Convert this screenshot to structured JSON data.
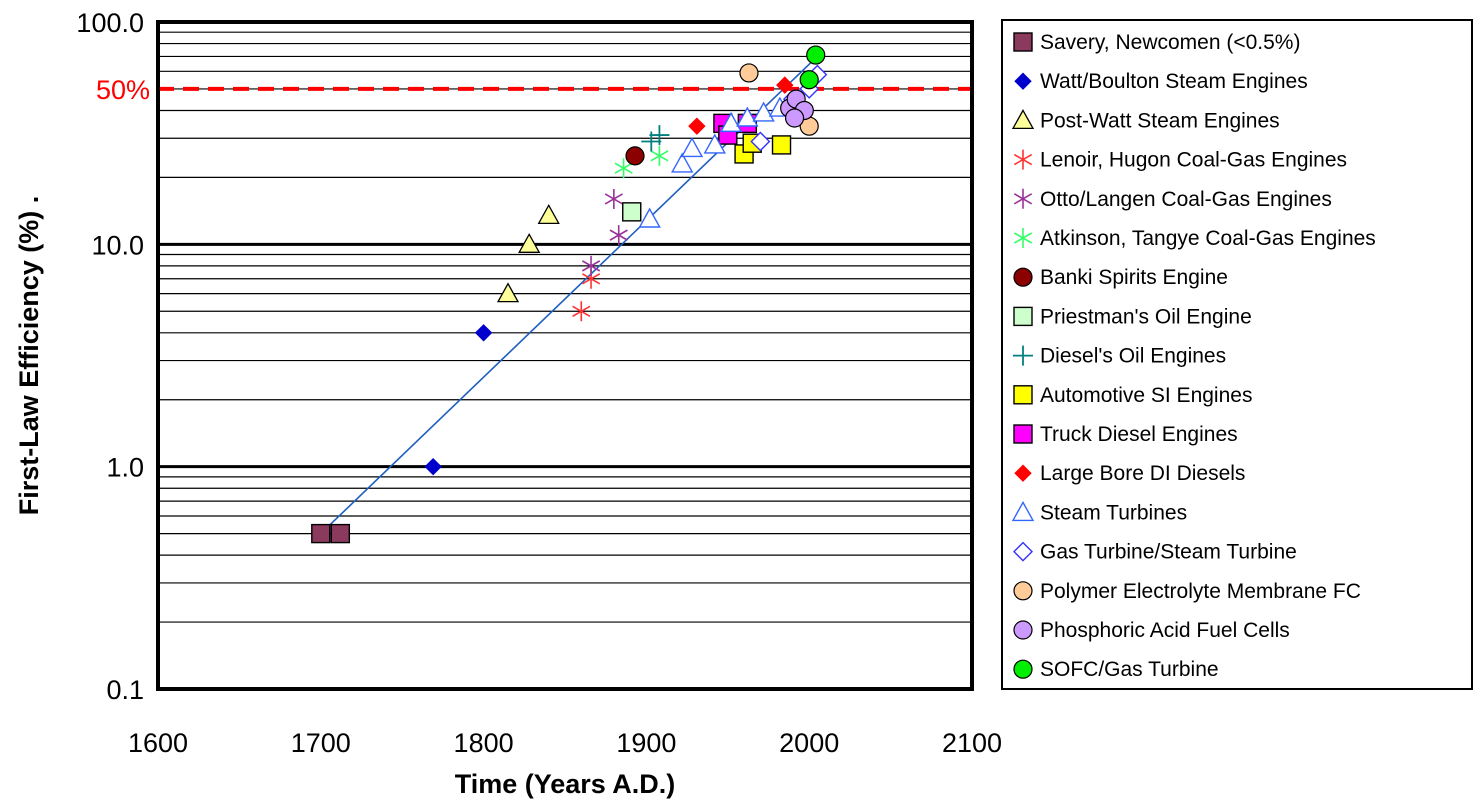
{
  "chart_data": {
    "type": "scatter",
    "xlabel": "Time (Years A.D.)",
    "ylabel": "First-Law Efficiency (%) .",
    "xlim": [
      1600,
      2100
    ],
    "ylim": [
      0.1,
      100
    ],
    "y_scale": "log",
    "x_ticks": [
      "1600",
      "1700",
      "1800",
      "1900",
      "2000",
      "2100"
    ],
    "y_ticks": [
      "0.1",
      "1.0",
      "10.0",
      "100.0"
    ],
    "grid": true,
    "legend_position": "right",
    "reference_line": {
      "label": "50%",
      "value": 50,
      "color": "#ff0000"
    },
    "trend_line": {
      "points": [
        [
          1700,
          0.5
        ],
        [
          2005,
          70
        ]
      ],
      "color": "#1f5fbf"
    },
    "series": [
      {
        "name": "Savery, Newcomen (<0.5%)",
        "marker": "square",
        "color": "#8b3a5e",
        "stroke": "#000000",
        "points": [
          [
            1700,
            0.5
          ],
          [
            1712,
            0.5
          ]
        ]
      },
      {
        "name": "Watt/Boulton Steam Engines",
        "marker": "diamond",
        "color": "#0000cc",
        "stroke": "#0000cc",
        "points": [
          [
            1769,
            1.0
          ],
          [
            1800,
            4.0
          ]
        ]
      },
      {
        "name": "Post-Watt Steam Engines",
        "marker": "triangle",
        "color": "#ffff99",
        "stroke": "#000000",
        "points": [
          [
            1815,
            6
          ],
          [
            1828,
            10
          ],
          [
            1840,
            13.5
          ]
        ]
      },
      {
        "name": "Lenoir, Hugon Coal-Gas Engines",
        "marker": "asterisk",
        "color": "#ff3333",
        "stroke": "#ff3333",
        "points": [
          [
            1860,
            5
          ],
          [
            1866,
            7
          ]
        ]
      },
      {
        "name": "Otto/Langen Coal-Gas Engines",
        "marker": "asterisk",
        "color": "#993399",
        "stroke": "#993399",
        "points": [
          [
            1866,
            8
          ],
          [
            1880,
            16
          ],
          [
            1883,
            11
          ]
        ]
      },
      {
        "name": "Atkinson, Tangye Coal-Gas Engines",
        "marker": "asterisk",
        "color": "#33ff66",
        "stroke": "#33ff66",
        "points": [
          [
            1886,
            22
          ],
          [
            1908,
            25
          ]
        ]
      },
      {
        "name": "Banki Spirits Engine",
        "marker": "circle",
        "color": "#8b0000",
        "stroke": "#000000",
        "points": [
          [
            1893,
            25
          ]
        ]
      },
      {
        "name": "Priestman's Oil Engine",
        "marker": "square",
        "color": "#ccffcc",
        "stroke": "#000000",
        "points": [
          [
            1891,
            14
          ]
        ]
      },
      {
        "name": "Diesel's Oil Engines",
        "marker": "plus",
        "color": "#008080",
        "stroke": "#008080",
        "points": [
          [
            1903,
            29
          ],
          [
            1908,
            31
          ]
        ]
      },
      {
        "name": "Automotive SI Engines",
        "marker": "square",
        "color": "#ffff00",
        "stroke": "#000000",
        "points": [
          [
            1960,
            25.5
          ],
          [
            1965,
            28.5
          ],
          [
            1983,
            28
          ]
        ]
      },
      {
        "name": "Truck Diesel Engines",
        "marker": "square",
        "color": "#ff00ff",
        "stroke": "#000000",
        "points": [
          [
            1947,
            35
          ],
          [
            1950,
            31
          ],
          [
            1962,
            35
          ]
        ]
      },
      {
        "name": "Large Bore DI Diesels",
        "marker": "diamond",
        "color": "#ff0000",
        "stroke": "#ff0000",
        "points": [
          [
            1931,
            34
          ],
          [
            1985,
            52
          ]
        ]
      },
      {
        "name": "Steam Turbines",
        "marker": "triangle-open",
        "color": "#3366ff",
        "stroke": "#3366ff",
        "points": [
          [
            1902,
            13
          ],
          [
            1922,
            23
          ],
          [
            1928,
            27
          ],
          [
            1942,
            28
          ],
          [
            1952,
            35
          ],
          [
            1962,
            37
          ],
          [
            1972,
            39
          ],
          [
            1982,
            41
          ]
        ]
      },
      {
        "name": "Gas Turbine/Steam Turbine",
        "marker": "diamond-open",
        "color": "#3333ff",
        "stroke": "#3333ff",
        "points": [
          [
            1970,
            29
          ],
          [
            1990,
            45
          ],
          [
            2000,
            50
          ],
          [
            2005,
            58
          ]
        ]
      },
      {
        "name": "Polymer Electrolyte Membrane FC",
        "marker": "circle",
        "color": "#ffcc99",
        "stroke": "#000000",
        "points": [
          [
            1963,
            59
          ],
          [
            2000,
            34
          ]
        ]
      },
      {
        "name": "Phosphoric Acid Fuel Cells",
        "marker": "circle",
        "color": "#cc99ff",
        "stroke": "#000000",
        "points": [
          [
            1988,
            41
          ],
          [
            1992,
            45
          ],
          [
            1997,
            40
          ],
          [
            1991,
            37
          ]
        ]
      },
      {
        "name": "SOFC/Gas Turbine",
        "marker": "circle",
        "color": "#00ee00",
        "stroke": "#000000",
        "points": [
          [
            2000,
            55
          ],
          [
            2004,
            71
          ]
        ]
      }
    ]
  }
}
